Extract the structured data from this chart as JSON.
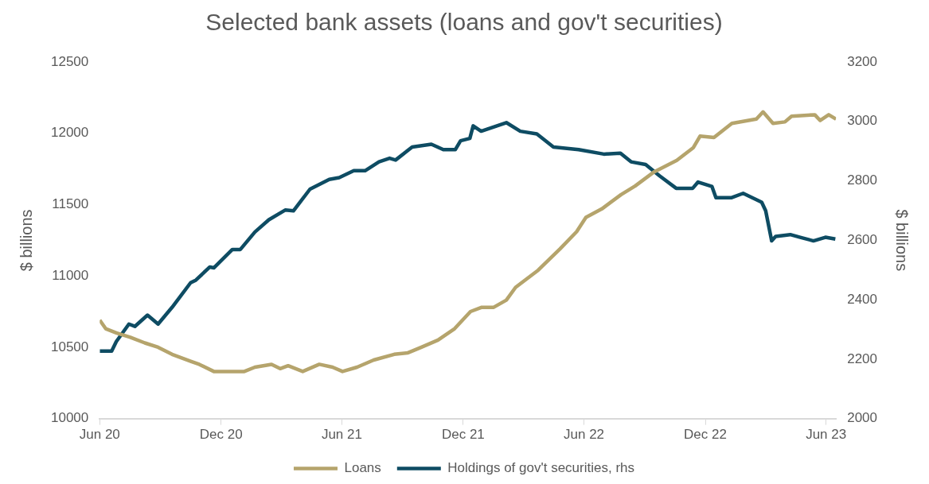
{
  "chart_data": {
    "type": "line",
    "title": "Selected bank assets (loans and gov't securities)",
    "ylabel": "$ billions",
    "y2label": "$ billions",
    "xlim": [
      "2020-06-01",
      "2023-06-16"
    ],
    "xticks": [
      {
        "value": "2020-06-01",
        "label": "Jun 20"
      },
      {
        "value": "2020-12-01",
        "label": "Dec 20"
      },
      {
        "value": "2021-06-01",
        "label": "Jun 21"
      },
      {
        "value": "2021-12-01",
        "label": "Dec 21"
      },
      {
        "value": "2022-06-01",
        "label": "Jun 22"
      },
      {
        "value": "2022-12-01",
        "label": "Dec 22"
      },
      {
        "value": "2023-06-01",
        "label": "Jun 23"
      }
    ],
    "ylim": [
      10000,
      12500
    ],
    "yticks": [
      10000,
      10500,
      11000,
      11500,
      12000,
      12500
    ],
    "y2lim": [
      2000,
      3200
    ],
    "y2ticks": [
      2000,
      2200,
      2400,
      2600,
      2800,
      3000,
      3200
    ],
    "grid": false,
    "legend": "bottom",
    "marker": "none",
    "line_style": "solid",
    "series": [
      {
        "name": "Loans",
        "color": "#b5a46c",
        "x": [
          "2020-06-01",
          "2020-06-10",
          "2020-06-26",
          "2020-07-17",
          "2020-08-08",
          "2020-08-28",
          "2020-09-18",
          "2020-10-17",
          "2020-10-29",
          "2020-11-20",
          "2020-12-18",
          "2021-01-05",
          "2021-01-21",
          "2021-02-15",
          "2021-02-28",
          "2021-03-12",
          "2021-04-03",
          "2021-04-28",
          "2021-05-18",
          "2021-06-02",
          "2021-06-24",
          "2021-07-19",
          "2021-08-19",
          "2021-09-08",
          "2021-09-29",
          "2021-10-24",
          "2021-11-18",
          "2021-12-12",
          "2021-12-29",
          "2022-01-16",
          "2022-02-04",
          "2022-02-18",
          "2022-03-24",
          "2022-04-26",
          "2022-05-21",
          "2022-06-04",
          "2022-06-28",
          "2022-07-27",
          "2022-08-17",
          "2022-09-15",
          "2022-10-19",
          "2022-11-13",
          "2022-11-23",
          "2022-12-14",
          "2023-01-10",
          "2023-02-16",
          "2023-02-26",
          "2023-03-13",
          "2023-03-31",
          "2023-04-10",
          "2023-05-15",
          "2023-05-23",
          "2023-06-05",
          "2023-06-16"
        ],
        "values": [
          10690,
          10630,
          10600,
          10570,
          10530,
          10500,
          10450,
          10400,
          10380,
          10330,
          10330,
          10330,
          10360,
          10380,
          10350,
          10370,
          10330,
          10380,
          10360,
          10330,
          10360,
          10410,
          10450,
          10460,
          10500,
          10550,
          10630,
          10750,
          10780,
          10780,
          10830,
          10920,
          11040,
          11190,
          11310,
          11410,
          11470,
          11570,
          11630,
          11730,
          11810,
          11900,
          11980,
          11970,
          12070,
          12100,
          12150,
          12070,
          12080,
          12120,
          12130,
          12090,
          12130,
          12100
        ]
      },
      {
        "name": "Holdings of gov't securities, rhs",
        "color": "#0e4c63",
        "axis": "y2",
        "x": [
          "2020-06-01",
          "2020-06-19",
          "2020-06-26",
          "2020-07-15",
          "2020-07-24",
          "2020-08-12",
          "2020-08-28",
          "2020-09-18",
          "2020-10-16",
          "2020-10-24",
          "2020-11-14",
          "2020-11-20",
          "2020-12-18",
          "2020-12-30",
          "2021-01-21",
          "2021-02-11",
          "2021-03-08",
          "2021-03-20",
          "2021-04-14",
          "2021-05-13",
          "2021-05-28",
          "2021-06-19",
          "2021-07-06",
          "2021-07-27",
          "2021-08-12",
          "2021-08-21",
          "2021-09-15",
          "2021-10-14",
          "2021-11-01",
          "2021-11-19",
          "2021-11-27",
          "2021-12-11",
          "2021-12-16",
          "2021-12-28",
          "2022-02-04",
          "2022-02-25",
          "2022-03-22",
          "2022-04-16",
          "2022-05-24",
          "2022-07-01",
          "2022-07-26",
          "2022-08-11",
          "2022-09-02",
          "2022-09-23",
          "2022-10-18",
          "2022-11-12",
          "2022-11-20",
          "2022-12-11",
          "2022-12-17",
          "2023-01-09",
          "2023-01-27",
          "2023-02-24",
          "2023-03-02",
          "2023-03-11",
          "2023-03-17",
          "2023-04-08",
          "2023-04-23",
          "2023-05-13",
          "2023-05-31",
          "2023-06-15"
        ],
        "values": [
          2227,
          2227,
          2259,
          2318,
          2310,
          2348,
          2318,
          2374,
          2457,
          2466,
          2510,
          2507,
          2569,
          2569,
          2628,
          2669,
          2702,
          2699,
          2772,
          2805,
          2811,
          2834,
          2834,
          2864,
          2876,
          2870,
          2914,
          2923,
          2905,
          2905,
          2935,
          2943,
          2985,
          2967,
          2996,
          2967,
          2958,
          2914,
          2905,
          2890,
          2893,
          2864,
          2855,
          2817,
          2775,
          2775,
          2796,
          2781,
          2743,
          2743,
          2758,
          2728,
          2699,
          2598,
          2613,
          2619,
          2610,
          2598,
          2610,
          2604
        ]
      }
    ]
  }
}
